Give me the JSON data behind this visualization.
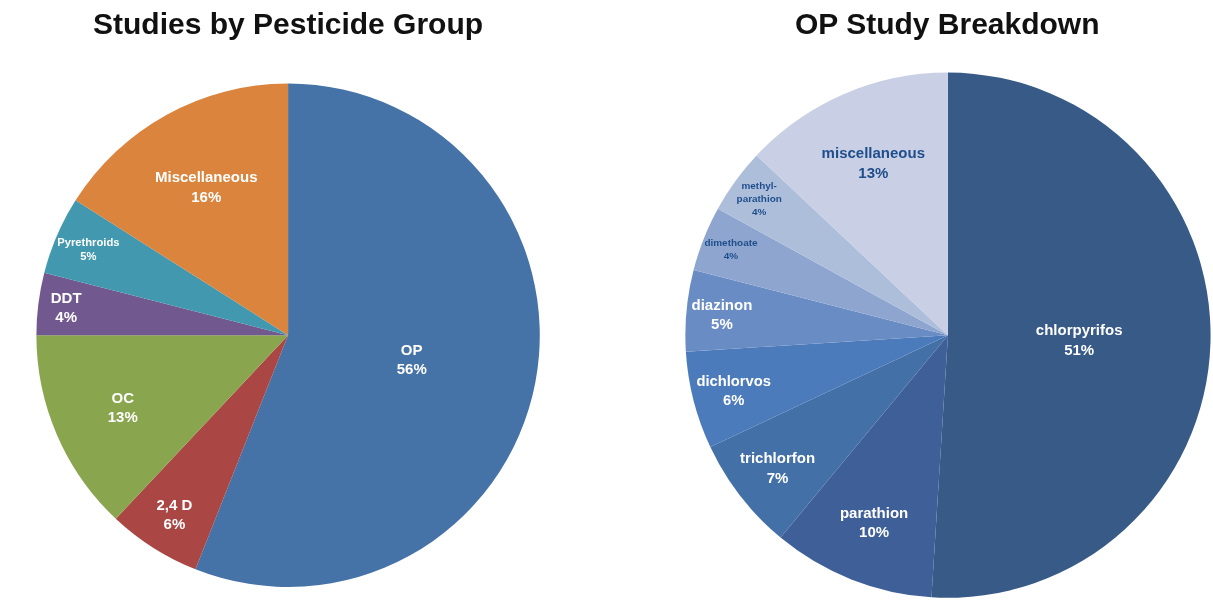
{
  "chart_data": [
    {
      "type": "pie",
      "title": "Studies by Pesticide Group",
      "categories": [
        "OP",
        "2,4 D",
        "OC",
        "DDT",
        "Pyrethroids",
        "Miscellaneous"
      ],
      "values": [
        56,
        6,
        13,
        4,
        5,
        16
      ],
      "colors": [
        "#4572a7",
        "#aa4643",
        "#89a54e",
        "#71588f",
        "#4198af",
        "#db843d"
      ],
      "value_labels": [
        "56%",
        "6%",
        "13%",
        "4%",
        "5%",
        "16%"
      ]
    },
    {
      "type": "pie",
      "title": "OP Study Breakdown",
      "categories": [
        "chlorpyrifos",
        "parathion",
        "trichlorfon",
        "dichlorvos",
        "diazinon",
        "dimethoate",
        "methyl-parathion",
        "miscellaneous"
      ],
      "values": [
        51,
        10,
        7,
        6,
        5,
        4,
        4,
        13
      ],
      "colors": [
        "#375a86",
        "#3f5f98",
        "#4470a8",
        "#4b7bbb",
        "#6a8cc4",
        "#8ea6cf",
        "#adbedb",
        "#c9cfe4"
      ],
      "value_labels": [
        "51%",
        "10%",
        "7%",
        "6%",
        "5%",
        "4%",
        "4%",
        "13%"
      ]
    }
  ]
}
